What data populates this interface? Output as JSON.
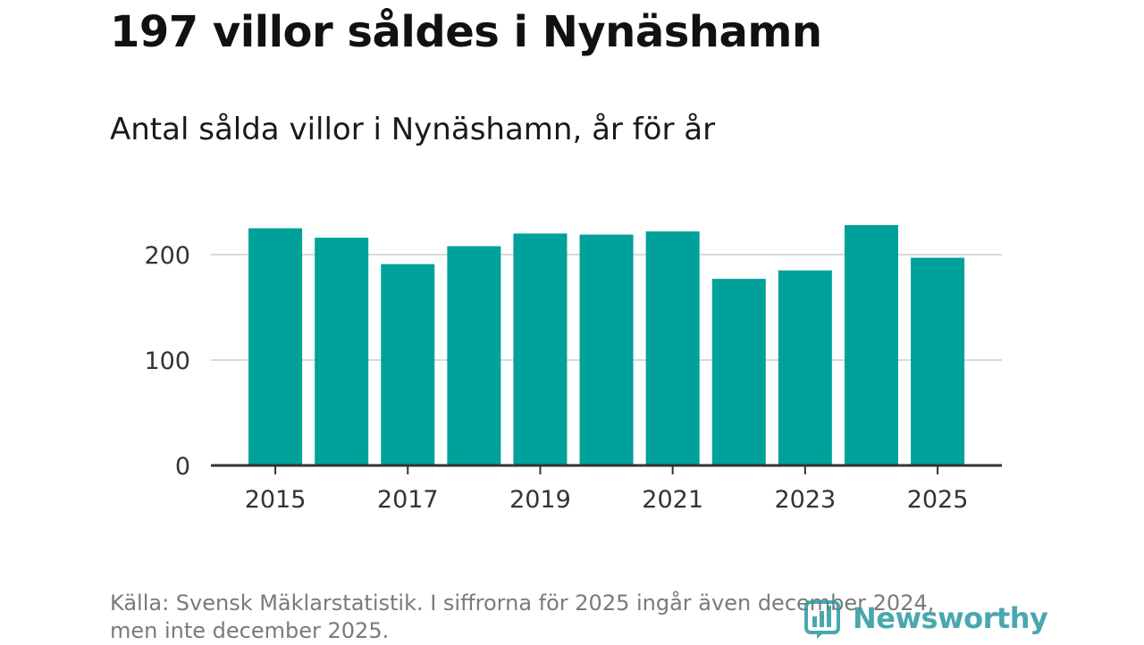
{
  "title": "197 villor såldes i Nynäshamn",
  "subtitle": "Antal sålda villor i Nynäshamn, år för år",
  "source_line1": "Källa: Svensk Mäklarstatistik. I siffrorna för 2025 ingår även december 2024,",
  "source_line2": "men inte december 2025.",
  "logo_text": "Newsworthy",
  "colors": {
    "bar": "#00a19a",
    "grid": "#d9d9d9",
    "axis": "#333333",
    "logo": "#2a9aa0"
  },
  "chart_data": {
    "type": "bar",
    "categories": [
      "2015",
      "2016",
      "2017",
      "2018",
      "2019",
      "2020",
      "2021",
      "2022",
      "2023",
      "2024",
      "2025"
    ],
    "values": [
      225,
      216,
      191,
      208,
      220,
      219,
      222,
      177,
      185,
      228,
      197
    ],
    "x_tick_labels": [
      "2015",
      "2017",
      "2019",
      "2021",
      "2023",
      "2025"
    ],
    "y_ticks": [
      0,
      100,
      200
    ],
    "ylim": [
      0,
      240
    ],
    "title": "Antal sålda villor i Nynäshamn, år för år",
    "xlabel": "",
    "ylabel": "",
    "grid": true,
    "legend": "none"
  }
}
